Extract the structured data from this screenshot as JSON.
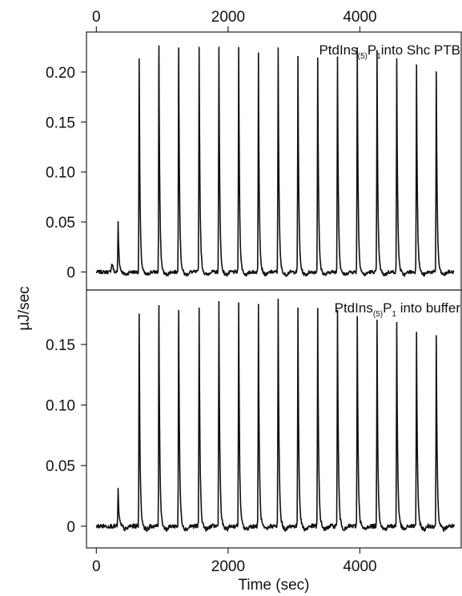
{
  "chart_data": [
    {
      "type": "line",
      "panel": "top",
      "annotation": {
        "prefix": "PtdIns",
        "sub": "(5)",
        "mid": "P",
        "sub2": "1",
        "suffix": "into Shc PTB"
      },
      "xlim": [
        -150,
        5550
      ],
      "ylim": [
        -0.018,
        0.24
      ],
      "x_ticks": [
        0,
        2000,
        4000
      ],
      "x_tick_labels": [
        "0",
        "2000",
        "4000"
      ],
      "x_ticks_position": "top",
      "y_ticks": [
        0,
        0.05,
        0.1,
        0.15,
        0.2
      ],
      "y_tick_labels": [
        "0",
        "0.05",
        "0.10",
        "0.15",
        "0.20"
      ],
      "baseline": 0.0,
      "bump": {
        "x": 240,
        "y": 0.008
      },
      "injection_times": [
        330,
        650,
        950,
        1250,
        1560,
        1860,
        2160,
        2460,
        2760,
        3060,
        3360,
        3660,
        3960,
        4260,
        4560,
        4860,
        5160
      ],
      "peak_values": [
        0.05,
        0.213,
        0.226,
        0.224,
        0.224,
        0.224,
        0.223,
        0.219,
        0.224,
        0.215,
        0.214,
        0.215,
        0.224,
        0.22,
        0.213,
        0.207,
        0.2
      ]
    },
    {
      "type": "line",
      "panel": "bottom",
      "annotation": {
        "prefix": "PtdIns",
        "sub": "(5)",
        "mid": "P",
        "sub2": "1",
        "suffix": " into buffer"
      },
      "xlim": [
        -150,
        5550
      ],
      "ylim": [
        -0.018,
        0.195
      ],
      "x_ticks": [
        0,
        2000,
        4000
      ],
      "x_tick_labels": [
        "0",
        "2000",
        "4000"
      ],
      "x_ticks_position": "bottom",
      "y_ticks": [
        0,
        0.05,
        0.1,
        0.15
      ],
      "y_tick_labels": [
        "0",
        "0.05",
        "0.10",
        "0.15"
      ],
      "baseline": 0.0,
      "injection_times": [
        330,
        650,
        950,
        1250,
        1560,
        1860,
        2160,
        2460,
        2760,
        3060,
        3360,
        3660,
        3960,
        4260,
        4560,
        4860,
        5160
      ],
      "peak_values": [
        0.03,
        0.175,
        0.182,
        0.178,
        0.18,
        0.185,
        0.183,
        0.183,
        0.187,
        0.18,
        0.179,
        0.178,
        0.173,
        0.17,
        0.168,
        0.16,
        0.156
      ]
    }
  ],
  "labels": {
    "ylabel": "µJ/sec",
    "xlabel": "Time (sec)"
  }
}
